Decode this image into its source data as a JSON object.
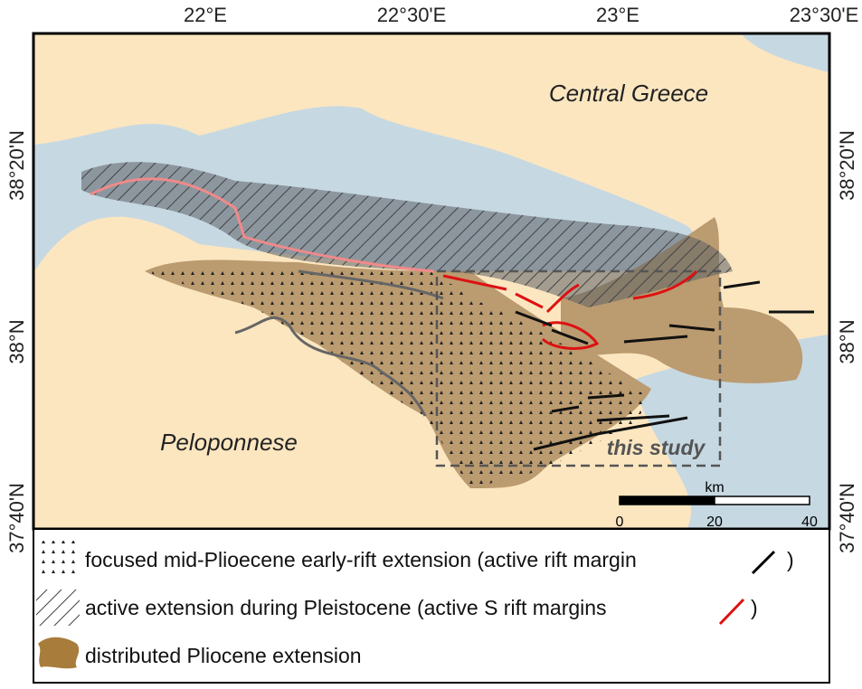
{
  "map": {
    "lon_ticks": [
      "22°E",
      "22°30'E",
      "23°E",
      "23°30'E"
    ],
    "lat_ticks": [
      "38°20'N",
      "38°N",
      "37°40'N"
    ],
    "place_labels": [
      "Central Greece",
      "Peloponnese"
    ],
    "study_label": "this study",
    "scale_bar": {
      "unit": "km",
      "ticks": [
        0,
        20,
        40
      ],
      "max": 40
    }
  },
  "legend": {
    "items": [
      {
        "text": "focused mid-Plioecene early-rift extension (active rift margin",
        "close": ")"
      },
      {
        "text": "active extension during Pleistocene (active S rift margins",
        "close": ")"
      },
      {
        "text": "distributed Pliocene extension"
      }
    ]
  }
}
